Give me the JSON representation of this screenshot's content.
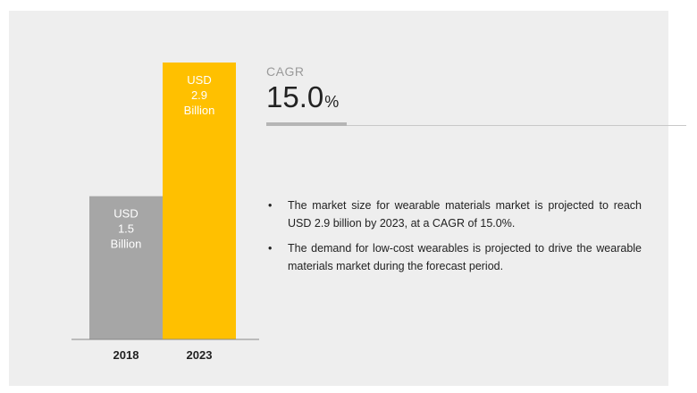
{
  "chart_data": {
    "type": "bar",
    "categories": [
      "2018",
      "2023"
    ],
    "values": [
      1.5,
      2.9
    ],
    "data_labels": [
      [
        "USD",
        "1.5",
        "Billion"
      ],
      [
        "USD",
        "2.9",
        "Billion"
      ]
    ],
    "colors": [
      "#a6a6a6",
      "#ffc000"
    ],
    "title": "",
    "xlabel": "",
    "ylabel": "",
    "ylim": [
      0,
      2.9
    ],
    "grid": false,
    "legend": "none"
  },
  "cagr": {
    "title": "CAGR",
    "value": "15.0",
    "unit": "%"
  },
  "bullets": [
    {
      "marker": "•",
      "text": "The market size for wearable materials market is projected to reach USD 2.9 billion by 2023, at a CAGR of 15.0%."
    },
    {
      "marker": "•",
      "text": "The demand for low-cost wearables is projected to drive the wearable materials market during the forecast period."
    }
  ]
}
